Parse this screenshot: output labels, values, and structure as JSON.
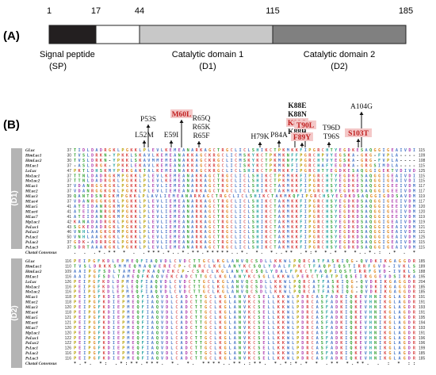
{
  "panel_a": {
    "label": "(A)",
    "positions": [
      "1",
      "17",
      "44",
      "115",
      "185"
    ],
    "segments": [
      {
        "name": "Signal peptide",
        "abbr": "(SP)",
        "color": "#231f20"
      },
      {
        "name": "",
        "abbr": "",
        "color": "#ffffff"
      },
      {
        "name": "Catalytic domain 1",
        "abbr": "(D1)",
        "color": "#c8c8c8"
      },
      {
        "name": "Catalytic domain 2",
        "abbr": "(D2)",
        "color": "#808080"
      }
    ]
  },
  "panel_b": {
    "label": "(B)",
    "domain_tags": [
      "(D1)",
      "(D2)"
    ],
    "mutations": [
      {
        "label": "L52M",
        "highlight": false
      },
      {
        "label": "P53S",
        "highlight": false
      },
      {
        "label": "E59I",
        "highlight": false
      },
      {
        "label": "M60L",
        "highlight": true
      },
      {
        "label": "R65Q",
        "highlight": false
      },
      {
        "label": "R65K",
        "highlight": false
      },
      {
        "label": "R65F",
        "highlight": false
      },
      {
        "label": "H79K",
        "highlight": false
      },
      {
        "label": "P84A",
        "highlight": false
      },
      {
        "label": "K88E",
        "highlight": false
      },
      {
        "label": "K88N",
        "highlight": false
      },
      {
        "label": "K88Q",
        "highlight": true
      },
      {
        "label": "K88R",
        "highlight": false
      },
      {
        "label": "F89Y",
        "highlight": true
      },
      {
        "label": "T90L",
        "highlight": true
      },
      {
        "label": "T96D",
        "highlight": false
      },
      {
        "label": "T96S",
        "highlight": false
      },
      {
        "label": "S103T",
        "highlight": true
      },
      {
        "label": "A104G",
        "highlight": false
      }
    ],
    "block1": {
      "names": [
        "GLuc",
        "HtmLuc1",
        "HtmLuc2",
        "HtLuc1",
        "LoLuc",
        "MoLuc1",
        "MoLuc2",
        "MLuc1",
        "MLuc2",
        "MLuc3",
        "MLuc4",
        "MLuc5",
        "MLuc6",
        "MLuc7",
        "MpLuc1",
        "PaLuc1",
        "PaLuc2",
        "PsLuc1",
        "PsLuc2",
        "PsLuc3",
        "Clustal Consensus"
      ],
      "start": [
        "37",
        "30",
        "30",
        "37",
        "47",
        "37",
        "37",
        "37",
        "37",
        "39",
        "37",
        "41",
        "41",
        "41",
        "42",
        "43",
        "46",
        "50",
        "37",
        "37",
        ""
      ],
      "end": [
        "115",
        "109",
        "108",
        "115",
        "125",
        "115",
        "115",
        "117",
        "117",
        "119",
        "117",
        "120",
        "120",
        "119",
        "119",
        "121",
        "121",
        "125",
        "115",
        "115",
        ""
      ],
      "seqs": [
        "TIDLDADRGKLPGKKLPLEVLKEMEANARKAGCTRGCLICLSHIKCTPKMKKFIPGRCHTYEGDKESAQGGIGEAIVDI",
        "TVSLDRKN-YPKKLSKAVLKEMEANAKKAGCKRGCLICMSKYKCTPKMKNFFPGRCHPVYEGSKA-GKG-FVPLA----",
        "TVSLDRKN-YPKKLSKAVMMEMEANAKKAGCKRGCLICMSKYKCTPKMKNFFPGRCHTVYEGSKA-GRG-FVPLA----",
        "-ASLDRGK-YPKKLEKAVLKEMEANAKKAGCKRGCLICISKYKCTPKMKNFIPGRCHAFYEGDKA-GRGSIMDLA----",
        "PKTLDHSKMYPEKGAKTALKEMEANAKKAGCKRGCLICLSHIKCTPRMKKFIPGRCHTYEGDKESAQGGIGEKTVDIVD",
        "TTNLDADRGKMPGKKLPLEVLKEMEANAKKAGCTRGCLICLSHIKCTPKMKKFIPGRCHTYEGDKESAQGGIGEAIVDI",
        "TTNLDADRGKLPGKKLPLEVLKEMEANARKAGCTRGCLICLSHIKCTPKMKKFIPGRCHTYEGDKESAQGGIGEAIVDI",
        "VDANRGGKGKLPGKKLPLEVLIEMEANARKAGCTRGCLICLSHIKCTAKMKKFIPGRCHSYEGDKDSAQGGIGEEIVDM",
        "VDANRGGKGKLPGKKLPLEVLIEMEANARKAGCTRGCLICLSHIKCTAKMKKFIPGRCHSYEGDKDSAQGGIGEEIVDM",
        "QANTDSNRGKMPGKKLPLAVLIEMEANARKAGCTRGCLICLSHIKCTAKMKQFIPGRCHSYEGDKDSAQGGIGDDSAVDM",
        "VDANRGGKGKLPGKKLPLEVLIEMEANARKAGCTRGCLICLSHIKCTAKMKKFIPGRCHSYEGDKDSAQGGIGEEIVDM",
        "ATEIDANRGKMPGKKLPLEVLIEMEANARKAGCTRGCLICLSHIKCTAKMKKFIPGRCHSYEGDKDSAQGGIGEEIVDM",
        "ATEIDANRGKMPGKKLPLEVLIEMEANARKAGCTRGCLICLSHIKCTAKMKKFIPGRCHSYEGDKDSAQGGIGEEIVDM",
        "ATEIDANRGKMPGKKLPLEVLIEMEANARKAGCTRGCLICLSHIKCTAKMKKFIPGRCHSYEGDKDSAQGGIGEEIVDM",
        "KANADADRGKLPGKKLPLEVLIEMEANARKAGCTRGCLICLSHIKCTAKMKKFIPGRCHSYEGDKDSAQGGIGEAIVDM",
        "SGKEDADRGKLPGKKLPLEVLIEMEANARKAGCTRGCLICLSHIKCTAKMKKFIPGRCHSYEGDKDSAQGGIGEAIVDM",
        "VNHLAAGKGKMPGKKLPLEVLIEMEANARKAGCTRGCLICLSHIKCTAKMKKFIPGRCHSYEGDKDSAQGGIGEAIVDM",
        "VNHLAAGKGKLPGKKLPLEVLIEMEANARKAGCTRGCLICLSHIKCTAKMKKFIPGRCHSYEGDKDSAQGGIGEAIVDM",
        "GDK-ADRRGKLPGKKLPLEVLIEMEANARKAGCTRGCLICLSHIKCTAKMKKFIPGRCHSYEGDKDSAQGGIGEAIVDM",
        "SDRTAAAKGKLPGKKLPLEVLIEMEANARKAGCTRGCLICLSHIKCTAKMKKFIPGRCHSYEGDKDSAQGGIGEAIVDM",
        "  .  .    .*.**  *  . .***.*..*.**.*****..*. *. *..** .*:* *.*  * *..*.:  .* . * "
      ]
    },
    "block2": {
      "names": [
        "GLuc",
        "HtmLuc1",
        "HtmLuc2",
        "HtLuc1",
        "LoLuc",
        "MoLuc1",
        "MoLuc2",
        "MLuc1",
        "MLuc2",
        "MLuc3",
        "MLuc4",
        "MLuc5",
        "MLuc6",
        "MLuc7",
        "MpLuc1",
        "PaLuc1",
        "PaLuc2",
        "PsLuc1",
        "PsLuc2",
        "PsLuc3",
        "Clustal Consensus"
      ],
      "start": [
        "116",
        "110",
        "109",
        "116",
        "126",
        "116",
        "116",
        "118",
        "118",
        "120",
        "118",
        "121",
        "121",
        "120",
        "120",
        "122",
        "122",
        "126",
        "116",
        "116",
        ""
      ],
      "end": [
        "185",
        "189",
        "188",
        "195",
        "204",
        "185",
        "185",
        "191",
        "191",
        "193",
        "191",
        "195",
        "194",
        "193",
        "191",
        "196",
        "196",
        "199",
        "185",
        "185",
        ""
      ],
      "seqs": [
        "PEIPGFKDLEPMEQFIAQVDLCVDCTTGCLKGLANVQCSDLLKKWLPQRCATFASKIQG-QVDKIKGAGGDR",
        "TVSLDRKKSMMEQMAQWERECP-CNRCLKGLANYKCSQLYDALFPKCTFAQPIQSTIRRFGVD-IVKLS",
        "AAIPGFSDLTAMEQFKAQVEKCP-CSRCLKGLANYKCSQLYDALFPKCTFAQPIQSTIRRFGVD-IVKLS",
        "AAIPGFSDLTAMEQFKAQVEKCADCTTGCLKGLANYKCSGLLKKWLPERCTFATPIQSEIRGGEVDSIRKA",
        "PEIPGFKDLDPMEQFIAQVDLCVDCTTGCLKGLANVQCSDLLKKWLPQRCATFASKIQG-QVDKIKGAGGDR",
        "PEIPGFKDLEPLEQFIAQVDLCVDCTTGCLKGLANVQCSDLLKKWLPQRCATFASKIQG-QVDKIKGAGGDR",
        "PEIPGFKDLEPMEQFIAQVDLCVDCTTGCLKGLANVQCSDLLKKWLPQRCATFASKIQG-QVDKIKGAGGDR",
        "PEIPGFKDIEPMEQFIAQVDLCADCTTGCLKGLANVKCSELLKKWLPDRCASFADKIQKEVHNIKGLAGDR",
        "PEIPGFKDIEPMEQFIAQVDLCADCTTGCLKGLANVKCSELLKKWLPDRCASFADKIQKEVHNIKGLAGDR",
        "PEIPGFKDIEPMEQFIAQVDLCADCTTGCLKGLANVKCSELLKKWLPDRCASFADKIQKEVHNIKGLAGDR",
        "PEIPGFKDIEPMEQFIAQVDLCADCTTGCLKGLANVKCSELLKKWLPDRCASFADKIQKEVHNIKGLAGDR",
        "PEIPGFKDIEPMEQFIAQVDLCADCTTGCLKGLANVKCSELLKKWLPDRCASFADKIQKEVHNIKGLAGDR",
        "PEIPGFKDIEPMEQFIAQVDLCADCTTGCLKGLANVKCSELLKKWLPDRCASFADKIQKEVHNIKGLAGDR",
        "PEIPGFKDIEPMEQFIAQVDLCADCTTGCLKGLANVKCSELLKKWLPDRCASFADKIQKEVHNIKGLAGDR",
        "PEIPGFKDIEPMEQFIAQVDLCADCTTGCLKGLANVKCSELLKKWLPDRCASFADKIQKEVHNIKGLAGDR",
        "PEIPGFKDIEPMEQFIAQVDLCADCTTGCLKGLANVKCSELLKKWLPDRCASFADKIQKEVHNIKGLAGDR",
        "PEIPGFKDIEPMEQFIAQVDLCADCTTGCLKGLANVKCSELLKKWLPDRCASFADKIQKEVHNIKGLAGDR",
        "PEIPGFKDIEPMEQFIAQVDLCADCTTGCLKGLANVKCSELLKKWLPDRCASFADKIQKEVHNIKGLAGDR",
        "PEIPGFKDIEPMEQFIAQVDLCADCTTGCLKGLANVKCSELLKKWLPDRCASFADKIQKEVHNIKGLAGDR",
        "PEIPGFKDIEPMEQFIAQVDLCADCTTGCLKGLANVKCSELLKKWLPDRCASFADKIQKEVHNIKGLAGDR",
        "  *.*. *: .*:**.***. *. *. ****..**.:**. *.*:*.* * .**  *.**.  . :  * ::"
      ]
    }
  },
  "colors": {
    "hydrophobic": "#4a78c8",
    "positive": "#d84040",
    "negative": "#b040b0",
    "polar": "#30a030",
    "glycine": "#e08a20",
    "proline": "#b8a000",
    "cysteine": "#e07070",
    "aromatic": "#20a0a0",
    "highlight_bg": "#f4c8c8",
    "highlight_text": "#c02020",
    "domain_tag_bg": "#b4b4b4"
  }
}
